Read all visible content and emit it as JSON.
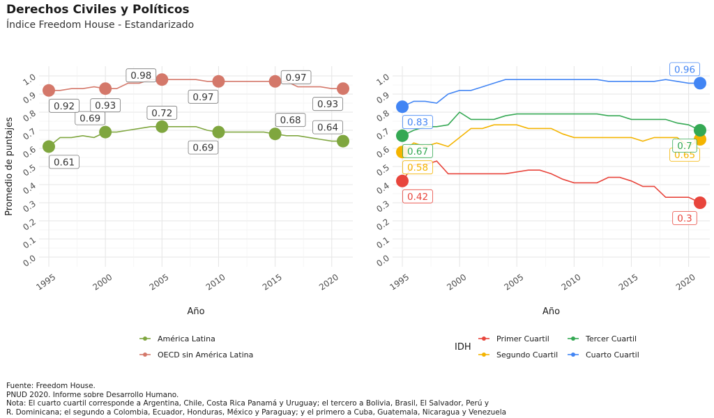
{
  "title": "Derechos Civiles y Políticos",
  "subtitle": "Índice Freedom House - Estandarizado",
  "caption": [
    "Fuente: Freedom House.",
    "PNUD 2020. Informe sobre Desarrollo Humano.",
    "Nota: El cuarto cuartil corresponde a Argentina, Chile, Costa Rica Panamá y Uruguay; el tercero a Bolivia, Brasil, El Salvador, Perú y",
    "R. Dominicana; el segundo a Colombia, Ecuador, Honduras, México y Paraguay; y el primero a Cuba, Guatemala, Nicaragua y Venezuela"
  ],
  "chart_data": [
    {
      "type": "line",
      "xlabel": "Año",
      "ylabel": "Promedio de puntajes",
      "xlim": [
        1995,
        2021
      ],
      "ylim": [
        0,
        1
      ],
      "x_ticks": [
        "1995",
        "2000",
        "2005",
        "2010",
        "2015",
        "2020"
      ],
      "y_ticks": [
        "0.0",
        "0.1",
        "0.2",
        "0.3",
        "0.4",
        "0.5",
        "0.6",
        "0.7",
        "0.8",
        "0.9",
        "1.0"
      ],
      "grid": true,
      "legend_position": "bottom",
      "legend_title": "",
      "series": [
        {
          "name": "América Latina",
          "color": "#7fa63f",
          "points": [
            [
              1995,
              0.61
            ],
            [
              1996,
              0.66
            ],
            [
              1997,
              0.66
            ],
            [
              1998,
              0.67
            ],
            [
              1999,
              0.66
            ],
            [
              2000,
              0.69
            ],
            [
              2001,
              0.69
            ],
            [
              2002,
              0.7
            ],
            [
              2003,
              0.71
            ],
            [
              2004,
              0.72
            ],
            [
              2005,
              0.72
            ],
            [
              2006,
              0.72
            ],
            [
              2007,
              0.72
            ],
            [
              2008,
              0.72
            ],
            [
              2009,
              0.7
            ],
            [
              2010,
              0.69
            ],
            [
              2011,
              0.69
            ],
            [
              2012,
              0.69
            ],
            [
              2013,
              0.69
            ],
            [
              2014,
              0.69
            ],
            [
              2015,
              0.68
            ],
            [
              2016,
              0.67
            ],
            [
              2017,
              0.67
            ],
            [
              2018,
              0.66
            ],
            [
              2019,
              0.65
            ],
            [
              2020,
              0.64
            ],
            [
              2021,
              0.64
            ]
          ],
          "markers": [
            [
              1995,
              0.61
            ],
            [
              2000,
              0.69
            ],
            [
              2005,
              0.72
            ],
            [
              2010,
              0.69
            ],
            [
              2015,
              0.68
            ],
            [
              2021,
              0.64
            ]
          ],
          "labels": [
            {
              "x": 1995,
              "y": 0.61,
              "text": "0.61",
              "pos": "below-right"
            },
            {
              "x": 2000,
              "y": 0.69,
              "text": "0.69",
              "pos": "above-left"
            },
            {
              "x": 2005,
              "y": 0.72,
              "text": "0.72",
              "pos": "above"
            },
            {
              "x": 2010,
              "y": 0.69,
              "text": "0.69",
              "pos": "below-left"
            },
            {
              "x": 2015,
              "y": 0.68,
              "text": "0.68",
              "pos": "above-right"
            },
            {
              "x": 2021,
              "y": 0.64,
              "text": "0.64",
              "pos": "above-left"
            }
          ]
        },
        {
          "name": "OECD sin América Latina",
          "color": "#d4786a",
          "points": [
            [
              1995,
              0.92
            ],
            [
              1996,
              0.92
            ],
            [
              1997,
              0.93
            ],
            [
              1998,
              0.93
            ],
            [
              1999,
              0.94
            ],
            [
              2000,
              0.93
            ],
            [
              2001,
              0.93
            ],
            [
              2002,
              0.96
            ],
            [
              2003,
              0.96
            ],
            [
              2004,
              0.98
            ],
            [
              2005,
              0.98
            ],
            [
              2006,
              0.98
            ],
            [
              2007,
              0.98
            ],
            [
              2008,
              0.98
            ],
            [
              2009,
              0.97
            ],
            [
              2010,
              0.97
            ],
            [
              2011,
              0.97
            ],
            [
              2012,
              0.97
            ],
            [
              2013,
              0.97
            ],
            [
              2014,
              0.97
            ],
            [
              2015,
              0.97
            ],
            [
              2016,
              0.97
            ],
            [
              2017,
              0.94
            ],
            [
              2018,
              0.94
            ],
            [
              2019,
              0.94
            ],
            [
              2020,
              0.93
            ],
            [
              2021,
              0.93
            ]
          ],
          "markers": [
            [
              1995,
              0.92
            ],
            [
              2000,
              0.93
            ],
            [
              2005,
              0.98
            ],
            [
              2010,
              0.97
            ],
            [
              2015,
              0.97
            ],
            [
              2021,
              0.93
            ]
          ],
          "labels": [
            {
              "x": 1995,
              "y": 0.92,
              "text": "0.92",
              "pos": "below-right"
            },
            {
              "x": 2000,
              "y": 0.93,
              "text": "0.93",
              "pos": "below"
            },
            {
              "x": 2005,
              "y": 0.98,
              "text": "0.98",
              "pos": "left"
            },
            {
              "x": 2010,
              "y": 0.97,
              "text": "0.97",
              "pos": "below-left"
            },
            {
              "x": 2015,
              "y": 0.97,
              "text": "0.97",
              "pos": "right"
            },
            {
              "x": 2021,
              "y": 0.93,
              "text": "0.93",
              "pos": "below-left"
            }
          ]
        }
      ]
    },
    {
      "type": "line",
      "xlabel": "Año",
      "ylabel": "",
      "xlim": [
        1995,
        2021
      ],
      "ylim": [
        0,
        1
      ],
      "x_ticks": [
        "1995",
        "2000",
        "2005",
        "2010",
        "2015",
        "2020"
      ],
      "y_ticks": [
        "0.0",
        "0.1",
        "0.2",
        "0.3",
        "0.4",
        "0.5",
        "0.6",
        "0.7",
        "0.8",
        "0.9",
        "1.0"
      ],
      "grid": true,
      "legend_position": "bottom",
      "legend_title": "IDH",
      "series": [
        {
          "name": "Primer Cuartil",
          "color": "#e8453c",
          "points": [
            [
              1995,
              0.42
            ],
            [
              1996,
              0.51
            ],
            [
              1997,
              0.51
            ],
            [
              1998,
              0.53
            ],
            [
              1999,
              0.46
            ],
            [
              2000,
              0.46
            ],
            [
              2001,
              0.46
            ],
            [
              2002,
              0.46
            ],
            [
              2003,
              0.46
            ],
            [
              2004,
              0.46
            ],
            [
              2005,
              0.47
            ],
            [
              2006,
              0.48
            ],
            [
              2007,
              0.48
            ],
            [
              2008,
              0.46
            ],
            [
              2009,
              0.43
            ],
            [
              2010,
              0.41
            ],
            [
              2011,
              0.41
            ],
            [
              2012,
              0.41
            ],
            [
              2013,
              0.44
            ],
            [
              2014,
              0.44
            ],
            [
              2015,
              0.42
            ],
            [
              2016,
              0.39
            ],
            [
              2017,
              0.39
            ],
            [
              2018,
              0.33
            ],
            [
              2019,
              0.33
            ],
            [
              2020,
              0.33
            ],
            [
              2021,
              0.3
            ]
          ],
          "markers": [
            [
              1995,
              0.42
            ],
            [
              2021,
              0.3
            ]
          ],
          "labels": [
            {
              "x": 1995,
              "y": 0.42,
              "text": "0.42",
              "pos": "below-right"
            },
            {
              "x": 2021,
              "y": 0.3,
              "text": "0.3",
              "pos": "below-left"
            }
          ]
        },
        {
          "name": "Segundo Cuartil",
          "color": "#f4b400",
          "points": [
            [
              1995,
              0.58
            ],
            [
              1996,
              0.63
            ],
            [
              1997,
              0.61
            ],
            [
              1998,
              0.63
            ],
            [
              1999,
              0.61
            ],
            [
              2000,
              0.66
            ],
            [
              2001,
              0.71
            ],
            [
              2002,
              0.71
            ],
            [
              2003,
              0.73
            ],
            [
              2004,
              0.73
            ],
            [
              2005,
              0.73
            ],
            [
              2006,
              0.71
            ],
            [
              2007,
              0.71
            ],
            [
              2008,
              0.71
            ],
            [
              2009,
              0.68
            ],
            [
              2010,
              0.66
            ],
            [
              2011,
              0.66
            ],
            [
              2012,
              0.66
            ],
            [
              2013,
              0.66
            ],
            [
              2014,
              0.66
            ],
            [
              2015,
              0.66
            ],
            [
              2016,
              0.64
            ],
            [
              2017,
              0.66
            ],
            [
              2018,
              0.66
            ],
            [
              2019,
              0.66
            ],
            [
              2020,
              0.61
            ],
            [
              2021,
              0.65
            ]
          ],
          "markers": [
            [
              1995,
              0.58
            ],
            [
              2021,
              0.65
            ]
          ],
          "labels": [
            {
              "x": 1995,
              "y": 0.58,
              "text": "0.58",
              "pos": "below-right"
            },
            {
              "x": 2021,
              "y": 0.65,
              "text": "0.65",
              "pos": "below-left"
            }
          ]
        },
        {
          "name": "Tercer Cuartil",
          "color": "#34a853",
          "points": [
            [
              1995,
              0.67
            ],
            [
              1996,
              0.7
            ],
            [
              1997,
              0.72
            ],
            [
              1998,
              0.72
            ],
            [
              1999,
              0.73
            ],
            [
              2000,
              0.8
            ],
            [
              2001,
              0.76
            ],
            [
              2002,
              0.76
            ],
            [
              2003,
              0.76
            ],
            [
              2004,
              0.78
            ],
            [
              2005,
              0.79
            ],
            [
              2006,
              0.79
            ],
            [
              2007,
              0.79
            ],
            [
              2008,
              0.79
            ],
            [
              2009,
              0.79
            ],
            [
              2010,
              0.79
            ],
            [
              2011,
              0.79
            ],
            [
              2012,
              0.79
            ],
            [
              2013,
              0.78
            ],
            [
              2014,
              0.78
            ],
            [
              2015,
              0.76
            ],
            [
              2016,
              0.76
            ],
            [
              2017,
              0.76
            ],
            [
              2018,
              0.76
            ],
            [
              2019,
              0.74
            ],
            [
              2020,
              0.73
            ],
            [
              2021,
              0.7
            ]
          ],
          "markers": [
            [
              1995,
              0.67
            ],
            [
              2021,
              0.7
            ]
          ],
          "labels": [
            {
              "x": 1995,
              "y": 0.67,
              "text": "0.67",
              "pos": "below-right"
            },
            {
              "x": 2021,
              "y": 0.7,
              "text": "0.7",
              "pos": "below-left"
            }
          ]
        },
        {
          "name": "Cuarto Cuartil",
          "color": "#4285f4",
          "points": [
            [
              1995,
              0.83
            ],
            [
              1996,
              0.86
            ],
            [
              1997,
              0.86
            ],
            [
              1998,
              0.85
            ],
            [
              1999,
              0.9
            ],
            [
              2000,
              0.92
            ],
            [
              2001,
              0.92
            ],
            [
              2002,
              0.94
            ],
            [
              2003,
              0.96
            ],
            [
              2004,
              0.98
            ],
            [
              2005,
              0.98
            ],
            [
              2006,
              0.98
            ],
            [
              2007,
              0.98
            ],
            [
              2008,
              0.98
            ],
            [
              2009,
              0.98
            ],
            [
              2010,
              0.98
            ],
            [
              2011,
              0.98
            ],
            [
              2012,
              0.98
            ],
            [
              2013,
              0.97
            ],
            [
              2014,
              0.97
            ],
            [
              2015,
              0.97
            ],
            [
              2016,
              0.97
            ],
            [
              2017,
              0.97
            ],
            [
              2018,
              0.98
            ],
            [
              2019,
              0.97
            ],
            [
              2020,
              0.96
            ],
            [
              2021,
              0.96
            ]
          ],
          "markers": [
            [
              1995,
              0.83
            ],
            [
              2021,
              0.96
            ]
          ],
          "labels": [
            {
              "x": 1995,
              "y": 0.83,
              "text": "0.83",
              "pos": "below-right"
            },
            {
              "x": 2021,
              "y": 0.96,
              "text": "0.96",
              "pos": "above-left"
            }
          ]
        }
      ]
    }
  ]
}
